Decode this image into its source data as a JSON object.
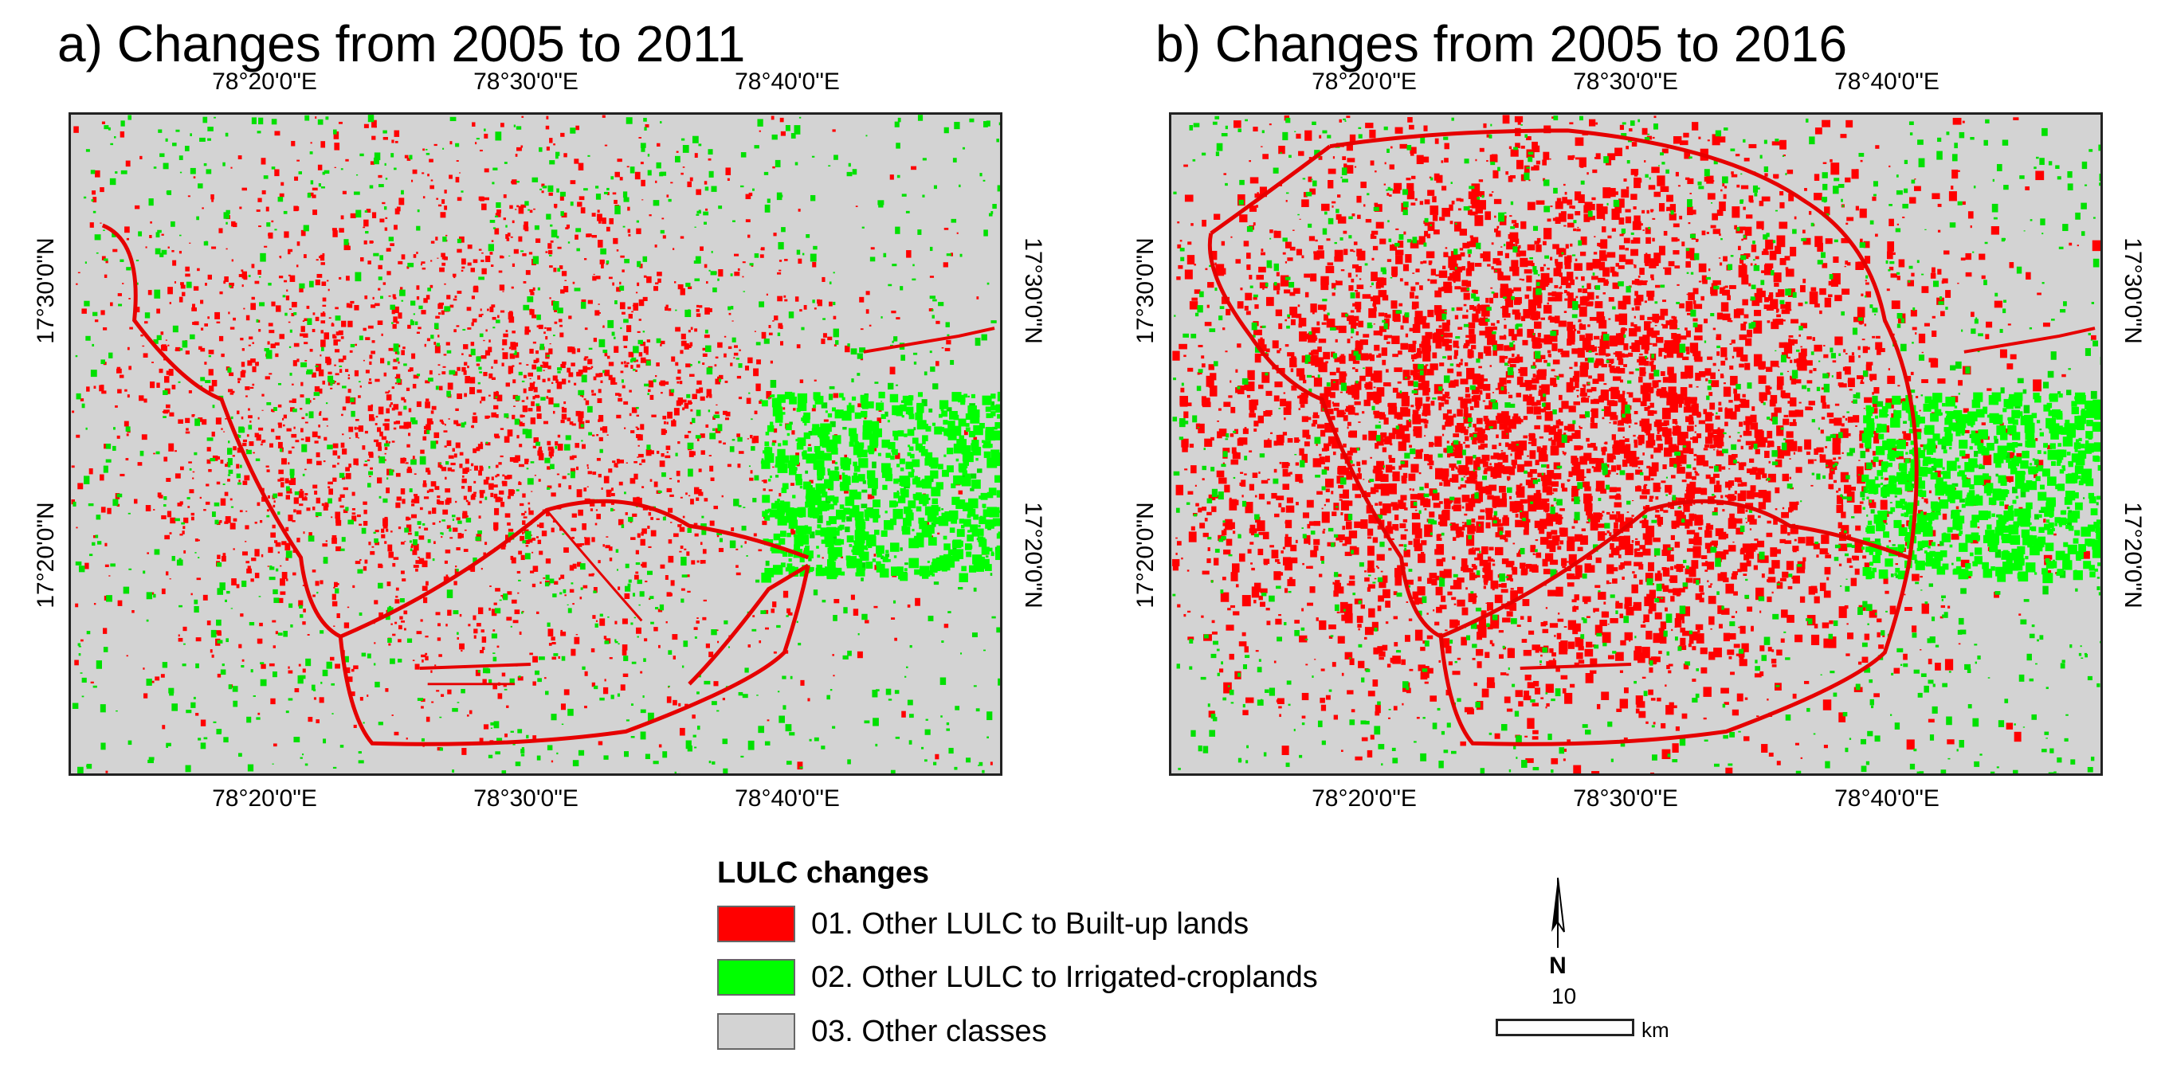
{
  "panels": [
    {
      "title": "a) Changes from 2005 to 2011",
      "top_ticks": [
        "78°20'0\"E",
        "78°30'0\"E",
        "78°40'0\"E"
      ],
      "bottom_ticks": [
        "78°20'0\"E",
        "78°30'0\"E",
        "78°40'0\"E"
      ],
      "left_ticks": [
        "17°30'0\"N",
        "17°20'0\"N"
      ],
      "right_ticks": [
        "17°30'0\"N",
        "17°20'0\"N"
      ]
    },
    {
      "title": "b) Changes from 2005 to 2016",
      "top_ticks": [
        "78°20'0\"E",
        "78°30'0\"E",
        "78°40'0\"E"
      ],
      "bottom_ticks": [
        "78°20'0\"E",
        "78°30'0\"E",
        "78°40'0\"E"
      ],
      "left_ticks": [
        "17°30'0\"N",
        "17°20'0\"N"
      ],
      "right_ticks": [
        "17°30'0\"N",
        "17°20'0\"N"
      ]
    }
  ],
  "legend": {
    "title": "LULC changes",
    "items": [
      {
        "label": "01. Other LULC to Built-up lands",
        "color": "#ff0000"
      },
      {
        "label": "02. Other LULC to Irrigated-croplands",
        "color": "#00ff00"
      },
      {
        "label": "03. Other classes",
        "color": "#d3d3d3"
      }
    ]
  },
  "north_arrow": {
    "label": "N"
  },
  "scale_bar": {
    "value": "10",
    "unit": "km"
  },
  "colors": {
    "background": "#d3d3d3",
    "built_up": "#ff0000",
    "irrigated": "#00ff00",
    "frame": "#222222"
  }
}
